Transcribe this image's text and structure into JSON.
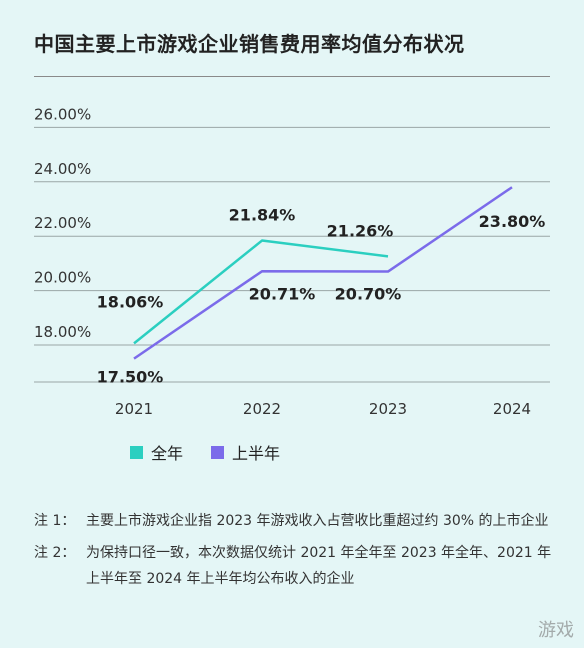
{
  "title": "中国主要上市游戏企业销售费用率均值分布状况",
  "legend": [
    {
      "label": "全年",
      "color": "#2bcfc0"
    },
    {
      "label": "上半年",
      "color": "#7b6bea"
    }
  ],
  "notes": [
    {
      "label": "注 1：",
      "text": "主要上市游戏企业指 2023 年游戏收入占营收比重超过约 30% 的上市企业"
    },
    {
      "label": "注 2：",
      "text": "为保持口径一致，本次数据仅统计 2021 年全年至 2023 年全年、2021 年上半年至 2024 年上半年均公布收入的企业"
    }
  ],
  "watermark": "游戏",
  "chart_data": {
    "type": "line",
    "categories": [
      "2021",
      "2022",
      "2023",
      "2024"
    ],
    "series": [
      {
        "name": "全年",
        "color": "#2bcfc0",
        "values": [
          18.06,
          21.84,
          21.26,
          null
        ],
        "labels": [
          "18.06%",
          "21.84%",
          "21.26%",
          ""
        ]
      },
      {
        "name": "上半年",
        "color": "#7b6bea",
        "values": [
          17.5,
          20.71,
          20.7,
          23.8
        ],
        "labels": [
          "17.50%",
          "20.71%",
          "20.70%",
          "23.80%"
        ]
      }
    ],
    "yticks": [
      "26.00%",
      "24.00%",
      "22.00%",
      "20.00%",
      "18.00%"
    ],
    "ylim": [
      16.5,
      26.0
    ],
    "grid": true
  }
}
